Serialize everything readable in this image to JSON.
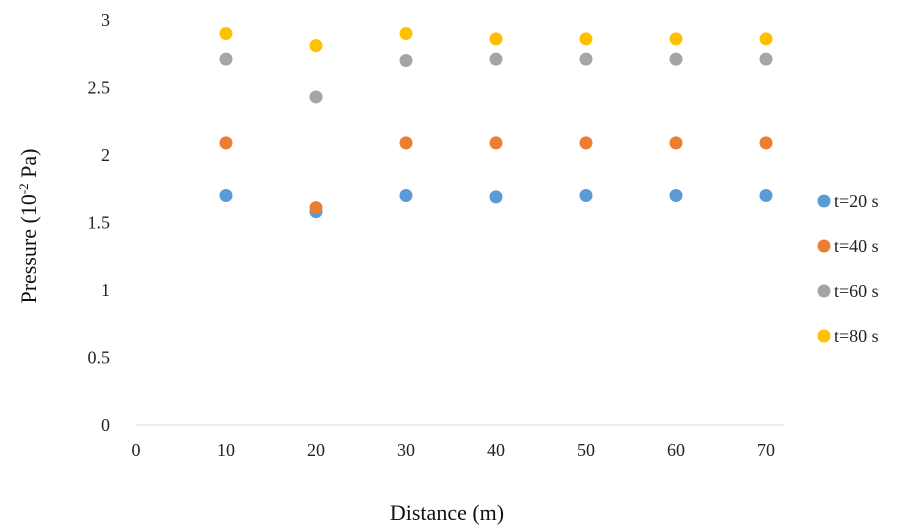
{
  "chart_data": {
    "type": "scatter",
    "title": "",
    "xlabel": "Distance (m)",
    "ylabel_main": "Pressure (10",
    "ylabel_exp": "-2",
    "ylabel_tail": " Pa)",
    "xlim": [
      0,
      70
    ],
    "ylim": [
      0,
      3
    ],
    "xticks": [
      "0",
      "10",
      "20",
      "30",
      "40",
      "50",
      "60",
      "70"
    ],
    "yticks": [
      "0",
      "0.5",
      "1",
      "1.5",
      "2",
      "2.5",
      "3"
    ],
    "grid": false,
    "legend_position": "right",
    "x": [
      10,
      20,
      30,
      40,
      50,
      60,
      70
    ],
    "series": [
      {
        "name": "t=20 s",
        "color": "#5B9BD5",
        "values": [
          1.7,
          1.58,
          1.7,
          1.69,
          1.7,
          1.7,
          1.7
        ]
      },
      {
        "name": "t=40 s",
        "color": "#ED7D31",
        "values": [
          2.09,
          1.61,
          2.09,
          2.09,
          2.09,
          2.09,
          2.09
        ]
      },
      {
        "name": "t=60 s",
        "color": "#A5A5A5",
        "values": [
          2.71,
          2.43,
          2.7,
          2.71,
          2.71,
          2.71,
          2.71
        ]
      },
      {
        "name": "t=80 s",
        "color": "#FFC000",
        "values": [
          2.9,
          2.81,
          2.9,
          2.86,
          2.86,
          2.86,
          2.86
        ]
      }
    ]
  }
}
